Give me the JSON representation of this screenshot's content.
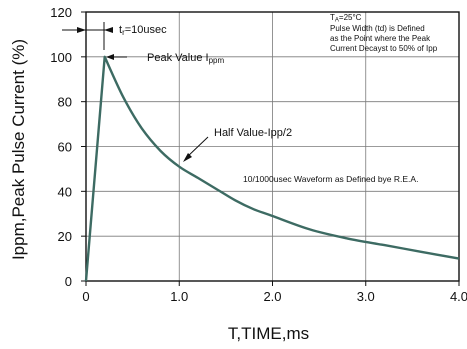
{
  "colors": {
    "curve": "#3d6b63",
    "grid": "#7a7a7a",
    "frame": "#111111",
    "text": "#111111"
  },
  "chart_data": {
    "type": "line",
    "title": "",
    "xlabel": "T,TIME,ms",
    "ylabel": "Ippm,Peak Pulse Current (%)",
    "xlim": [
      0,
      4.0
    ],
    "ylim": [
      0,
      120
    ],
    "grid": true,
    "x_ticks": [
      0,
      1.0,
      2.0,
      3.0,
      4.0
    ],
    "x_tick_labels": [
      "0",
      "1.0",
      "2.0",
      "3.0",
      "4.0"
    ],
    "y_ticks": [
      0,
      20,
      40,
      60,
      80,
      100,
      120
    ],
    "y_tick_labels": [
      "0",
      "20",
      "40",
      "60",
      "80",
      "100",
      "120"
    ],
    "series": [
      {
        "values": [
          [
            0,
            0
          ],
          [
            0.2,
            100
          ],
          [
            0.4,
            82
          ],
          [
            0.6,
            68
          ],
          [
            0.8,
            58
          ],
          [
            1.0,
            51
          ],
          [
            1.2,
            46
          ],
          [
            1.4,
            41
          ],
          [
            1.6,
            36
          ],
          [
            1.8,
            32
          ],
          [
            2.0,
            29
          ],
          [
            2.4,
            23
          ],
          [
            2.8,
            19
          ],
          [
            3.2,
            16
          ],
          [
            3.6,
            13
          ],
          [
            4.0,
            10
          ]
        ]
      }
    ],
    "annotations": {
      "rise_time": {
        "prefix": "t",
        "sub": "r",
        "suffix": "=10usec"
      },
      "peak_value": {
        "main": "Peak   Value   I",
        "sub": "ppm"
      },
      "half_value": "Half Value-Ipp/2",
      "conditions": {
        "line1_prefix": "T",
        "line1_sub": "A",
        "line1_suffix": "=25°C",
        "line2": "Pulse    Width (td) is  Defined",
        "line3": "as the Point  where the Peak",
        "line4": "Current  Decayst to 50% of Ipp"
      },
      "waveform": "10/1000usec  Waveform as Defined bye R.E.A."
    }
  }
}
